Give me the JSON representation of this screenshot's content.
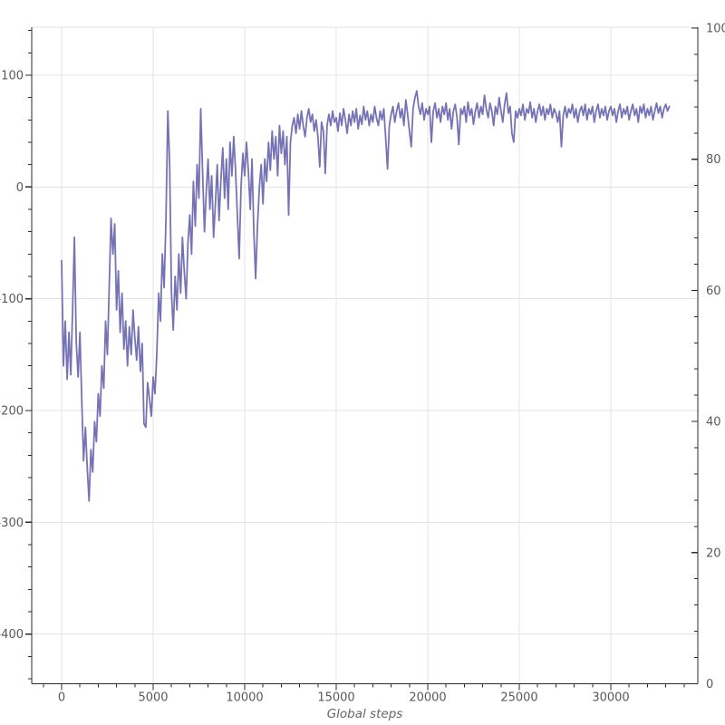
{
  "chart_data": {
    "type": "line",
    "title": "",
    "xlabel": "Global steps",
    "grid": true,
    "legend": "none",
    "x_axis": {
      "ticks": [
        0,
        5000,
        10000,
        15000,
        20000,
        25000,
        30000
      ],
      "tick_labels": [
        "0",
        "5000",
        "10000",
        "15000",
        "20000",
        "25000",
        "30000"
      ],
      "minor_tick_step": 1000,
      "range": [
        -1633,
        34750
      ]
    },
    "y_axis_left": {
      "ticks": [
        100,
        0,
        -100,
        -200,
        -300,
        -400
      ],
      "tick_labels": [
        "100",
        "0",
        "-100",
        "-200",
        "-300",
        "-400"
      ],
      "minor_tick_step": 20,
      "range": [
        -444,
        143
      ]
    },
    "y_axis_right": {
      "ticks": [
        100,
        80,
        60,
        40,
        20,
        0
      ],
      "tick_labels": [
        "100",
        "80",
        "60",
        "40",
        "20",
        "0"
      ],
      "minor_tick_step": 4,
      "range": [
        0,
        100
      ]
    },
    "series": [
      {
        "color": "#7673b5",
        "x_start": 0,
        "x_step": 100,
        "values": [
          -66,
          -160,
          -120,
          -172,
          -130,
          -168,
          -110,
          -45,
          -140,
          -170,
          -130,
          -190,
          -245,
          -215,
          -252,
          -281,
          -235,
          -255,
          -210,
          -228,
          -185,
          -205,
          -160,
          -180,
          -120,
          -150,
          -90,
          -28,
          -60,
          -33,
          -110,
          -75,
          -130,
          -95,
          -145,
          -120,
          -160,
          -125,
          -150,
          -110,
          -135,
          -155,
          -125,
          -165,
          -140,
          -212,
          -215,
          -175,
          -190,
          -205,
          -170,
          -185,
          -150,
          -95,
          -120,
          -60,
          -90,
          -30,
          68,
          20,
          -95,
          -128,
          -80,
          -110,
          -60,
          -95,
          -45,
          -75,
          -100,
          -50,
          -25,
          -60,
          5,
          -35,
          20,
          -10,
          70,
          15,
          -40,
          -5,
          25,
          -20,
          10,
          -45,
          -15,
          20,
          -30,
          5,
          35,
          -10,
          25,
          -20,
          40,
          10,
          45,
          15,
          -25,
          -64,
          0,
          30,
          10,
          40,
          15,
          -20,
          25,
          -40,
          -82,
          -35,
          0,
          20,
          -15,
          25,
          5,
          40,
          15,
          50,
          25,
          45,
          10,
          55,
          30,
          50,
          20,
          45,
          -25,
          40,
          55,
          62,
          48,
          65,
          52,
          68,
          55,
          45,
          62,
          70,
          58,
          65,
          50,
          60,
          45,
          18,
          58,
          50,
          12,
          55,
          65,
          55,
          68,
          58,
          62,
          50,
          66,
          55,
          70,
          60,
          48,
          65,
          55,
          68,
          58,
          70,
          52,
          64,
          56,
          72,
          60,
          68,
          55,
          65,
          58,
          72,
          62,
          55,
          68,
          60,
          70,
          45,
          16,
          55,
          65,
          72,
          58,
          68,
          75,
          62,
          70,
          55,
          78,
          65,
          50,
          36,
          70,
          80,
          86,
          72,
          65,
          75,
          60,
          70,
          65,
          72,
          40,
          68,
          75,
          62,
          70,
          58,
          72,
          65,
          75,
          60,
          70,
          52,
          68,
          74,
          62,
          38,
          70,
          65,
          72,
          58,
          76,
          64,
          70,
          56,
          68,
          75,
          62,
          72,
          65,
          82,
          70,
          62,
          75,
          68,
          55,
          72,
          65,
          80,
          68,
          58,
          74,
          84,
          66,
          72,
          48,
          40,
          68,
          62,
          70,
          64,
          74,
          60,
          70,
          66,
          76,
          62,
          70,
          58,
          68,
          74,
          64,
          72,
          60,
          70,
          65,
          74,
          62,
          70,
          66,
          58,
          68,
          36,
          64,
          72,
          62,
          70,
          66,
          74,
          62,
          70,
          58,
          68,
          72,
          64,
          74,
          60,
          70,
          65,
          72,
          58,
          68,
          74,
          62,
          70,
          64,
          72,
          60,
          68,
          72,
          64,
          70,
          58,
          68,
          74,
          62,
          70,
          65,
          72,
          60,
          68,
          74,
          64,
          70,
          58,
          72,
          66,
          74,
          62,
          70,
          64,
          72,
          60,
          68,
          75,
          66,
          72,
          62,
          70,
          74,
          68,
          72
        ]
      }
    ],
    "colors": {
      "line": "#7673b5",
      "grid": "#e3e3e3",
      "spine": "#2b2b2b",
      "tick_label": "#595959",
      "axis_title": "#666666",
      "background": "#ffffff"
    }
  }
}
